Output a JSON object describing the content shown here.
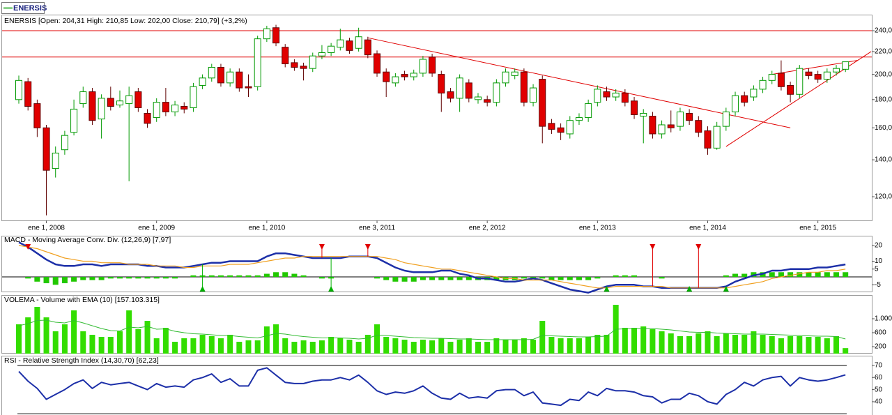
{
  "chart_data": [
    {
      "type": "candlestick",
      "legend": "ENERSIS",
      "title": "ENERSIS [Open: 204,31  High: 210,85  Low: 202,00  Close: 210,79]  (+3,2%)",
      "open": [
        180,
        194,
        177,
        160,
        135,
        146,
        157,
        177,
        186,
        166,
        181,
        176,
        177,
        186,
        170,
        167,
        178,
        171,
        175,
        174,
        191,
        197,
        206,
        193,
        202,
        190,
        190,
        232,
        243,
        224,
        210,
        207,
        205,
        216,
        219,
        224,
        230,
        223,
        231,
        218,
        202,
        193,
        200,
        198,
        201,
        215,
        200,
        186,
        181,
        193,
        180,
        180,
        178,
        193,
        199,
        202,
        178,
        196,
        163,
        160,
        156,
        165,
        167,
        178,
        186,
        182,
        185,
        179,
        168,
        168,
        156,
        162,
        161,
        170,
        165,
        158,
        147,
        161,
        171,
        183,
        182,
        188,
        195,
        201,
        191,
        184,
        202,
        200,
        196,
        202,
        204.31
      ],
      "high": [
        199,
        197,
        180,
        162,
        148,
        158,
        180,
        190,
        189,
        184,
        190,
        187,
        190,
        189,
        173,
        181,
        189,
        179,
        178,
        193,
        200,
        209,
        209,
        205,
        205,
        200,
        235,
        245,
        246,
        227,
        213,
        210,
        219,
        226,
        228,
        242,
        233,
        243,
        234,
        221,
        205,
        201,
        203,
        204,
        216,
        218,
        203,
        189,
        200,
        196,
        185,
        183,
        196,
        205,
        205,
        205,
        192,
        199,
        166,
        163,
        168,
        170,
        180,
        191,
        190,
        188,
        188,
        182,
        173,
        171,
        165,
        172,
        174,
        173,
        168,
        161,
        164,
        174,
        186,
        186,
        191,
        198,
        203,
        212,
        194,
        208,
        205,
        203,
        205,
        208,
        210.85
      ],
      "low": [
        177,
        172,
        154,
        111,
        130,
        143,
        155,
        174,
        162,
        153,
        172,
        174,
        128,
        171,
        160,
        164,
        168,
        168,
        170,
        171,
        188,
        194,
        190,
        190,
        186,
        182,
        187,
        229,
        225,
        206,
        203,
        195,
        202,
        213,
        216,
        221,
        218,
        220,
        214,
        198,
        182,
        190,
        195,
        195,
        198,
        198,
        171,
        178,
        171,
        178,
        177,
        175,
        175,
        190,
        196,
        175,
        175,
        150,
        156,
        152,
        153,
        162,
        164,
        175,
        179,
        179,
        175,
        166,
        150,
        153,
        153,
        157,
        158,
        162,
        154,
        143,
        146,
        158,
        168,
        175,
        179,
        185,
        192,
        187,
        178,
        181,
        196,
        193,
        193,
        199,
        202
      ],
      "close": [
        195,
        175,
        160,
        134,
        144,
        155,
        173,
        186,
        165,
        181,
        175,
        179,
        183,
        174,
        163,
        178,
        171,
        176,
        173,
        190,
        197,
        206,
        193,
        202,
        189,
        189,
        232,
        242,
        228,
        209,
        206,
        205,
        216,
        219,
        225,
        231,
        221,
        234,
        217,
        201,
        194,
        198,
        198,
        201,
        213,
        201,
        185,
        181,
        197,
        181,
        182,
        178,
        193,
        202,
        202,
        178,
        189,
        161,
        159,
        157,
        165,
        167,
        177,
        188,
        182,
        185,
        178,
        169,
        170,
        156,
        162,
        160,
        171,
        165,
        157,
        147,
        161,
        171,
        183,
        178,
        188,
        195,
        200,
        190,
        184,
        205,
        199,
        196,
        202,
        205,
        210.79
      ],
      "up_color": "#009900",
      "down_color": "#e00000",
      "log_scale": true,
      "ylim": [
        108.7,
        255.9
      ],
      "yticks": [
        {
          "value": 240,
          "label": "240,0"
        },
        {
          "value": 220,
          "label": "220,0"
        },
        {
          "value": 200,
          "label": "200,0"
        },
        {
          "value": 180,
          "label": "180,0"
        },
        {
          "value": 160,
          "label": "160,0"
        },
        {
          "value": 140,
          "label": "140,0"
        },
        {
          "value": 120,
          "label": "120,0"
        }
      ],
      "xticks": [
        {
          "value": 3,
          "label": "ene 1, 2008"
        },
        {
          "value": 15,
          "label": "ene 1, 2009"
        },
        {
          "value": 27,
          "label": "ene 1, 2010"
        },
        {
          "value": 39,
          "label": "ene 3, 2011"
        },
        {
          "value": 51,
          "label": "ene 2, 2012"
        },
        {
          "value": 63,
          "label": "ene 1, 2013"
        },
        {
          "value": 75,
          "label": "ene 1, 2014"
        },
        {
          "value": 87,
          "label": "ene 1, 2015"
        }
      ],
      "levels": [
        240,
        215
      ],
      "trend_color": "#e00000",
      "trend_lines": [
        {
          "x": [
            38,
            84
          ],
          "y": [
            233,
            160
          ]
        },
        {
          "x": [
            77,
            92.8
          ],
          "y": [
            148,
            220
          ]
        },
        {
          "x": [
            82,
            91.3
          ],
          "y": [
            200,
            212
          ]
        }
      ]
    },
    {
      "type": "macd",
      "title": "MACD - Moving Average Conv. Div. (12,26,9) [7,97]",
      "series": [
        {
          "color": "#1c2fa8",
          "values": [
            22,
            19,
            15,
            11,
            8,
            7,
            7,
            8,
            8,
            7,
            8,
            8,
            8,
            8,
            7,
            7,
            6,
            6,
            6,
            7,
            8,
            9,
            9,
            10,
            10,
            10,
            10,
            13,
            15,
            15,
            14,
            13,
            12,
            12,
            12,
            12,
            13,
            13,
            13,
            12,
            9,
            6,
            4,
            3,
            3,
            3,
            4,
            4,
            2,
            1,
            -1,
            -1,
            -2,
            -3,
            -3,
            -2,
            -1,
            -2,
            -4,
            -6,
            -8,
            -9,
            -10,
            -8,
            -6,
            -5,
            -5,
            -5,
            -6,
            -6,
            -7,
            -7,
            -7,
            -7,
            -7,
            -7,
            -7,
            -6,
            -3,
            -1,
            1,
            2,
            4,
            4,
            5,
            5,
            5,
            6,
            6,
            7,
            7.97
          ]
        },
        {
          "color": "#f0a020",
          "values": [
            20,
            19,
            18,
            16,
            14,
            12,
            11,
            10,
            10,
            9,
            9,
            9,
            8,
            8,
            8,
            7,
            7,
            7,
            6,
            6,
            7,
            7,
            7,
            8,
            8,
            8,
            9,
            10,
            11,
            12,
            12,
            13,
            13,
            13,
            13,
            13,
            13,
            13,
            13,
            13,
            12,
            11,
            9,
            8,
            7,
            6,
            5,
            5,
            4,
            3,
            2,
            1,
            0,
            -1,
            -1,
            -2,
            -2,
            -2,
            -2,
            -3,
            -4,
            -5,
            -6,
            -7,
            -7,
            -6,
            -6,
            -6,
            -6,
            -6,
            -6,
            -7,
            -7,
            -7,
            -7,
            -7,
            -7,
            -7,
            -6,
            -5,
            -4,
            -3,
            -1,
            0,
            1,
            2,
            3,
            3,
            4,
            4,
            5
          ]
        }
      ],
      "bars": {
        "color": "#22c800",
        "values": [
          0,
          -1,
          -3,
          -4,
          -5,
          -4,
          -3,
          -2,
          -2,
          -2,
          -1,
          -1,
          -1,
          -1,
          -1,
          -1,
          -1,
          -1,
          0,
          1,
          1,
          1,
          1,
          1,
          1,
          1,
          1,
          2,
          3,
          3,
          2,
          1,
          0,
          -1,
          -1,
          0,
          0,
          0,
          0,
          -1,
          -2,
          -3,
          -3,
          -3,
          -2,
          -2,
          -2,
          -2,
          -2,
          -2,
          -2,
          -2,
          -2,
          -2,
          -2,
          -1,
          -1,
          -1,
          -2,
          -2,
          -2,
          -2,
          -2,
          -1,
          0,
          1,
          1,
          1,
          0,
          0,
          -1,
          0,
          0,
          0,
          0,
          0,
          0,
          1,
          2,
          2,
          3,
          3,
          3,
          3,
          3,
          3,
          3,
          3,
          3,
          3,
          3
        ]
      },
      "levels": [
        0
      ],
      "ylim": [
        -9.3,
        25.3
      ],
      "yticks": [
        20,
        10,
        5,
        -5
      ],
      "sell_signals": [
        1,
        33,
        38,
        69,
        74
      ],
      "sell_color": "#e00000",
      "buy_signals": [
        20,
        34,
        64,
        73,
        77
      ],
      "buy_color": "#00b000"
    },
    {
      "type": "volume",
      "title": "VOLEMA - Volume with EMA (10) [157.103.315]",
      "values": [
        840,
        1040,
        1340,
        1040,
        640,
        840,
        1240,
        640,
        540,
        480,
        480,
        640,
        1240,
        700,
        940,
        440,
        740,
        340,
        440,
        440,
        540,
        500,
        440,
        540,
        340,
        380,
        380,
        780,
        840,
        440,
        340,
        380,
        340,
        380,
        480,
        440,
        400,
        340,
        540,
        840,
        480,
        440,
        400,
        340,
        400,
        380,
        440,
        340,
        400,
        440,
        340,
        340,
        440,
        400,
        400,
        440,
        400,
        940,
        480,
        440,
        440,
        440,
        480,
        540,
        540,
        1400,
        740,
        740,
        780,
        700,
        640,
        580,
        500,
        500,
        580,
        640,
        500,
        580,
        540,
        540,
        640,
        540,
        500,
        440,
        500,
        500,
        480,
        480,
        440,
        500,
        157
      ],
      "color": "#33dd00",
      "series": [
        {
          "color": "#33bb33",
          "values": [
            800,
            860,
            950,
            960,
            900,
            880,
            950,
            880,
            800,
            720,
            660,
            650,
            760,
            740,
            780,
            700,
            710,
            640,
            600,
            570,
            560,
            540,
            520,
            520,
            490,
            470,
            450,
            510,
            580,
            560,
            520,
            490,
            470,
            450,
            450,
            450,
            440,
            420,
            440,
            530,
            520,
            500,
            480,
            460,
            450,
            440,
            440,
            430,
            420,
            420,
            410,
            400,
            400,
            400,
            400,
            400,
            410,
            520,
            510,
            500,
            490,
            480,
            480,
            490,
            500,
            700,
            710,
            710,
            720,
            720,
            700,
            680,
            650,
            620,
            610,
            610,
            590,
            580,
            570,
            560,
            560,
            560,
            550,
            540,
            530,
            520,
            510,
            500,
            500,
            490,
            420
          ]
        }
      ],
      "ylim": [
        0,
        1640
      ],
      "yticks": [
        {
          "value": 1000,
          "label": "1.000"
        },
        600,
        200
      ]
    },
    {
      "type": "rsi",
      "title": "RSI - Relative Strength Index (14,30,70) [62,23]",
      "series": [
        {
          "color": "#1c2fa8",
          "values": [
            65,
            57,
            51,
            42,
            46,
            50,
            55,
            58,
            51,
            56,
            54,
            55,
            56,
            53,
            50,
            55,
            52,
            53,
            52,
            58,
            60,
            63,
            56,
            59,
            53,
            53,
            66,
            68,
            62,
            56,
            55,
            55,
            57,
            58,
            58,
            60,
            58,
            62,
            56,
            49,
            46,
            48,
            47,
            49,
            53,
            47,
            43,
            42,
            47,
            43,
            44,
            43,
            49,
            50,
            50,
            45,
            48,
            39,
            38,
            37,
            42,
            41,
            48,
            45,
            51,
            49,
            49,
            48,
            45,
            44,
            39,
            42,
            42,
            47,
            45,
            40,
            38,
            46,
            50,
            56,
            53,
            58,
            60,
            61,
            53,
            60,
            58,
            57,
            58,
            60,
            62.23
          ]
        }
      ],
      "levels": [
        70,
        30
      ],
      "ylim": [
        29,
        76.9
      ],
      "yticks": [
        70,
        60,
        50,
        40
      ]
    }
  ]
}
